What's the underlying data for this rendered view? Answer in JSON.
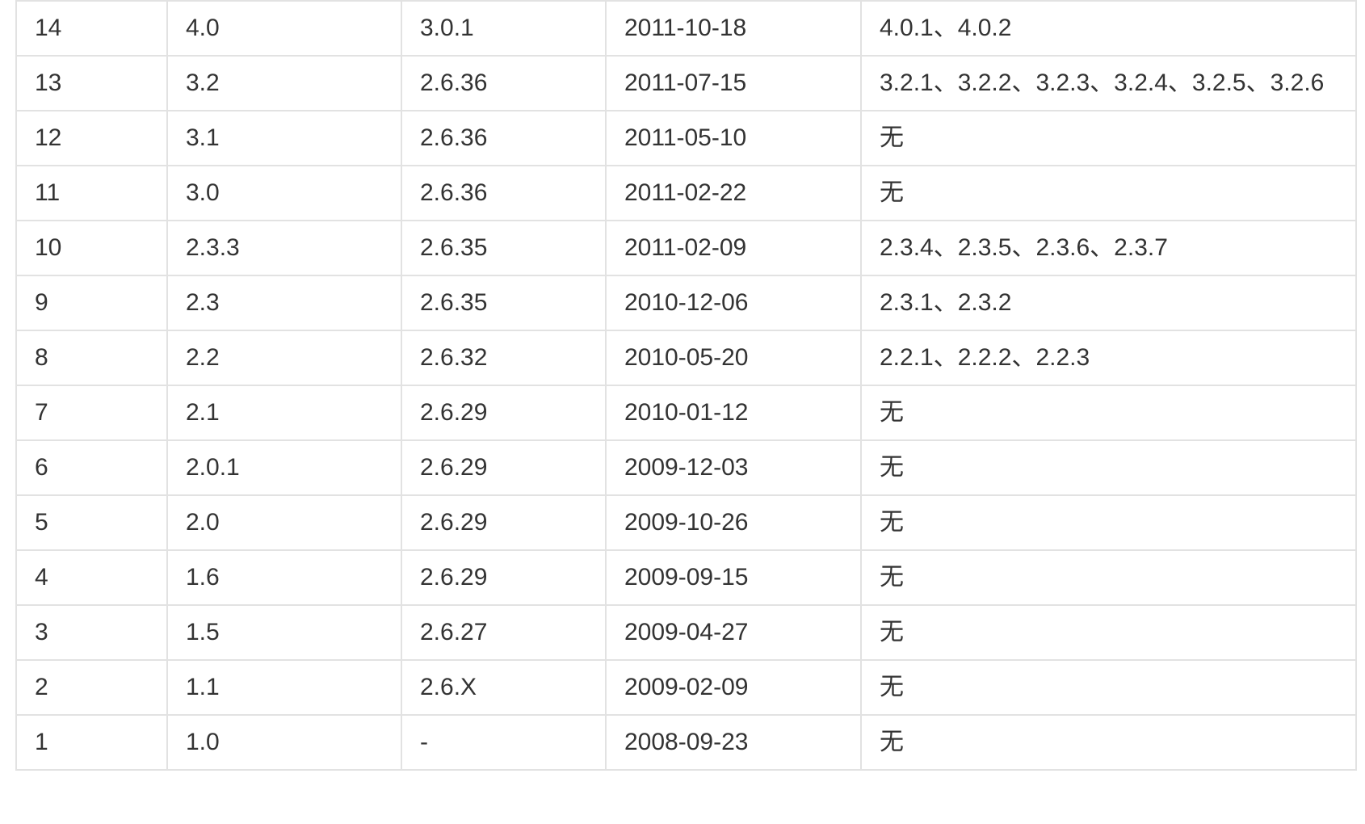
{
  "table": {
    "rows": [
      {
        "no": "14",
        "version": "4.0",
        "kernel": "3.0.1",
        "date": "2011-10-18",
        "updates": "4.0.1、4.0.2"
      },
      {
        "no": "13",
        "version": "3.2",
        "kernel": "2.6.36",
        "date": "2011-07-15",
        "updates": "3.2.1、3.2.2、3.2.3、3.2.4、3.2.5、3.2.6"
      },
      {
        "no": "12",
        "version": "3.1",
        "kernel": "2.6.36",
        "date": "2011-05-10",
        "updates": "无"
      },
      {
        "no": "11",
        "version": "3.0",
        "kernel": "2.6.36",
        "date": "2011-02-22",
        "updates": "无"
      },
      {
        "no": "10",
        "version": "2.3.3",
        "kernel": "2.6.35",
        "date": "2011-02-09",
        "updates": "2.3.4、2.3.5、2.3.6、2.3.7"
      },
      {
        "no": "9",
        "version": "2.3",
        "kernel": "2.6.35",
        "date": "2010-12-06",
        "updates": "2.3.1、2.3.2"
      },
      {
        "no": "8",
        "version": "2.2",
        "kernel": "2.6.32",
        "date": "2010-05-20",
        "updates": "2.2.1、2.2.2、2.2.3"
      },
      {
        "no": "7",
        "version": "2.1",
        "kernel": "2.6.29",
        "date": "2010-01-12",
        "updates": "无"
      },
      {
        "no": "6",
        "version": "2.0.1",
        "kernel": "2.6.29",
        "date": "2009-12-03",
        "updates": "无"
      },
      {
        "no": "5",
        "version": "2.0",
        "kernel": "2.6.29",
        "date": "2009-10-26",
        "updates": "无"
      },
      {
        "no": "4",
        "version": "1.6",
        "kernel": "2.6.29",
        "date": "2009-09-15",
        "updates": "无"
      },
      {
        "no": "3",
        "version": "1.5",
        "kernel": "2.6.27",
        "date": "2009-04-27",
        "updates": "无"
      },
      {
        "no": "2",
        "version": "1.1",
        "kernel": "2.6.X",
        "date": "2009-02-09",
        "updates": "无"
      },
      {
        "no": "1",
        "version": "1.0",
        "kernel": "-",
        "date": "2008-09-23",
        "updates": "无"
      }
    ]
  },
  "colors": {
    "border": "#e2e2e2",
    "text": "#333333",
    "background": "#ffffff"
  }
}
